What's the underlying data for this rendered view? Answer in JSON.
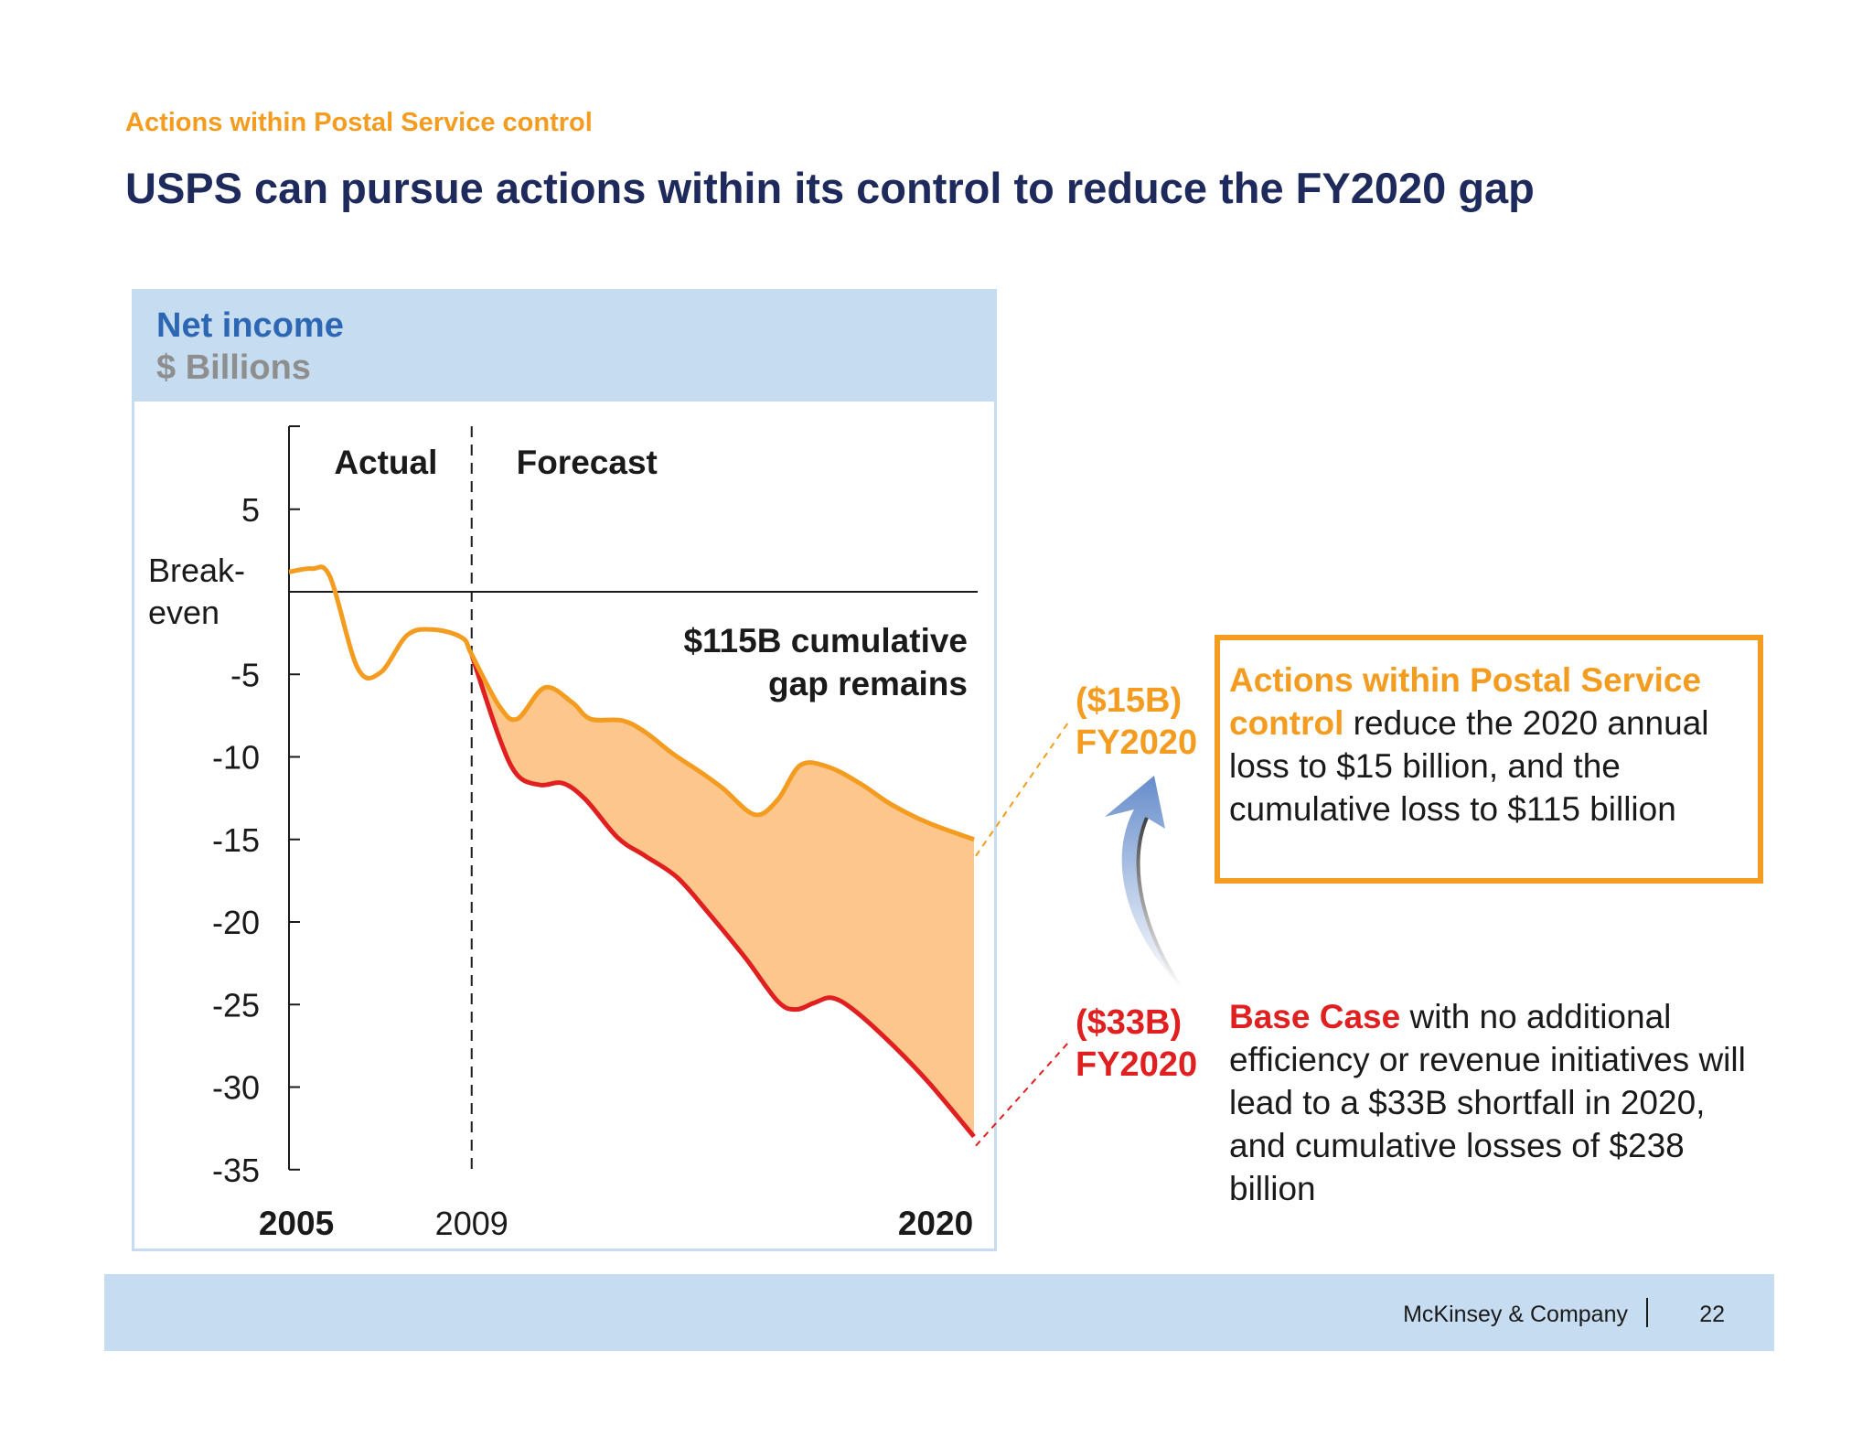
{
  "header": {
    "eyebrow": "Actions within Postal Service control",
    "title": "USPS can pursue actions within its control to reduce the FY2020 gap"
  },
  "chart_data": {
    "type": "area",
    "title": "Net income",
    "ylabel": "$ Billions",
    "ylim": [
      -35,
      10
    ],
    "xlim": [
      2005,
      2020
    ],
    "y_ticks": [
      {
        "value": 5,
        "label": "5"
      },
      {
        "value": -5,
        "label": "-5"
      },
      {
        "value": -10,
        "label": "-10"
      },
      {
        "value": -15,
        "label": "-15"
      },
      {
        "value": -20,
        "label": "-20"
      },
      {
        "value": -25,
        "label": "-25"
      },
      {
        "value": -30,
        "label": "-30"
      },
      {
        "value": -35,
        "label": "-35"
      }
    ],
    "breakeven_label_line1": "Break-",
    "breakeven_label_line2": "even",
    "x_labels": [
      {
        "value": 2005,
        "label": "2005",
        "bold": true
      },
      {
        "value": 2009,
        "label": "2009",
        "bold": false
      },
      {
        "value": 2020,
        "label": "2020",
        "bold": true
      }
    ],
    "divider_year": 2009,
    "region_labels": {
      "actual": "Actual",
      "forecast": "Forecast"
    },
    "gap_label_line1": "$115B cumulative",
    "gap_label_line2": "gap remains",
    "series": [
      {
        "name": "Actions within Postal Service control",
        "color": "#f39c1f",
        "points": [
          [
            2005,
            1.2
          ],
          [
            2005.5,
            1.4
          ],
          [
            2005.9,
            0.9
          ],
          [
            2006.5,
            -4.6
          ],
          [
            2007.0,
            -4.9
          ],
          [
            2007.6,
            -2.6
          ],
          [
            2008.2,
            -2.3
          ],
          [
            2008.8,
            -2.8
          ],
          [
            2009.0,
            -3.8
          ],
          [
            2009.6,
            -6.9
          ],
          [
            2010.0,
            -7.7
          ],
          [
            2010.6,
            -5.8
          ],
          [
            2011.2,
            -6.7
          ],
          [
            2011.6,
            -7.7
          ],
          [
            2012.3,
            -7.8
          ],
          [
            2012.8,
            -8.5
          ],
          [
            2013.4,
            -9.8
          ],
          [
            2014.0,
            -10.9
          ],
          [
            2014.5,
            -11.9
          ],
          [
            2015.2,
            -13.5
          ],
          [
            2015.7,
            -12.6
          ],
          [
            2016.2,
            -10.5
          ],
          [
            2016.8,
            -10.6
          ],
          [
            2017.5,
            -11.6
          ],
          [
            2018.2,
            -12.9
          ],
          [
            2019.0,
            -14.0
          ],
          [
            2020.0,
            -15.0
          ]
        ]
      },
      {
        "name": "Base Case",
        "color": "#e02020",
        "points": [
          [
            2009.0,
            -3.8
          ],
          [
            2009.6,
            -8.8
          ],
          [
            2010.0,
            -11.1
          ],
          [
            2010.5,
            -11.7
          ],
          [
            2011.0,
            -11.6
          ],
          [
            2011.5,
            -12.6
          ],
          [
            2012.2,
            -14.9
          ],
          [
            2012.8,
            -16.0
          ],
          [
            2013.5,
            -17.3
          ],
          [
            2014.2,
            -19.5
          ],
          [
            2015.0,
            -22.2
          ],
          [
            2015.7,
            -24.8
          ],
          [
            2016.1,
            -25.3
          ],
          [
            2016.5,
            -24.9
          ],
          [
            2016.9,
            -24.6
          ],
          [
            2017.4,
            -25.4
          ],
          [
            2018.2,
            -27.4
          ],
          [
            2019.0,
            -29.7
          ],
          [
            2020.0,
            -33.0
          ]
        ]
      }
    ]
  },
  "callouts": {
    "upper_value": "($15B)",
    "upper_year": "FY2020",
    "lower_value": "($33B)",
    "lower_year": "FY2020",
    "upper_note": {
      "lead": "Actions within Postal Service control",
      "rest": " reduce the 2020 annual loss to $15 billion, and the cumulative loss to $115 billion"
    },
    "lower_note": {
      "lead": "Base Case",
      "rest": " with no additional efficiency or revenue initiatives will lead to a $33B shortfall in 2020, and cumulative losses of $238 billion"
    }
  },
  "colors": {
    "orange": "#f39c1f",
    "red": "#e02020",
    "gap_fill": "#fdc68c",
    "navy": "#1f2a5c",
    "panel_blue": "#c6dcf0"
  },
  "footer": {
    "company": "McKinsey & Company",
    "page": "22"
  }
}
